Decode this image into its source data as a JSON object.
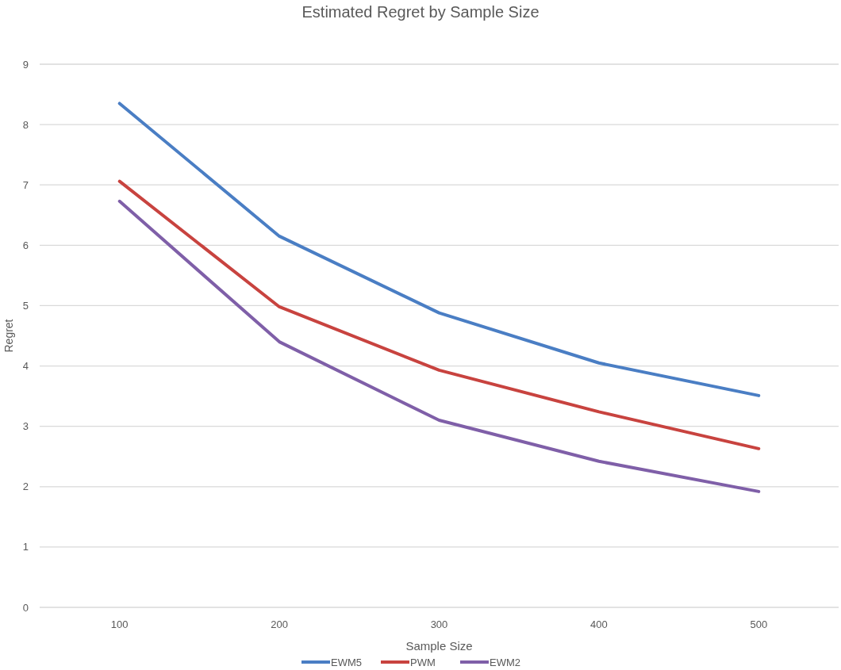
{
  "chart_data": {
    "type": "line",
    "title": "Estimated Regret by Sample Size",
    "xlabel": "Sample Size",
    "ylabel": "Regret",
    "categories": [
      "100",
      "200",
      "300",
      "400",
      "500"
    ],
    "series": [
      {
        "name": "EWM5",
        "color": "#4a7ec4",
        "values": [
          8.35,
          6.15,
          4.88,
          4.05,
          3.51
        ]
      },
      {
        "name": "PWM",
        "color": "#c8433f",
        "values": [
          7.06,
          4.98,
          3.93,
          3.24,
          2.63
        ]
      },
      {
        "name": "EWM2",
        "color": "#7f5fa8",
        "values": [
          6.73,
          4.4,
          3.1,
          2.42,
          1.92
        ]
      }
    ],
    "ylim": [
      0,
      9
    ],
    "yticks": [
      0,
      1,
      2,
      3,
      4,
      5,
      6,
      7,
      8,
      9
    ],
    "grid": "y",
    "legend": "bottom",
    "marker": "none",
    "line_style": "solid"
  }
}
